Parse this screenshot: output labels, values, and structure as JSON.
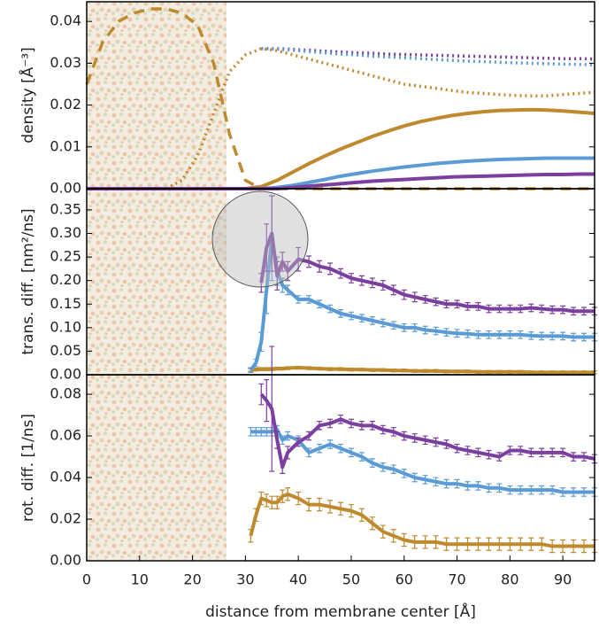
{
  "chart_data": [
    {
      "type": "line",
      "ylabel": "density [Å⁻³]",
      "xlim": [
        0,
        96
      ],
      "ylim": [
        0,
        0.0447
      ],
      "yticks": [
        {
          "value": 0,
          "label": "0.00"
        },
        0.01,
        0.02,
        0.03,
        0.04
      ],
      "x": [
        0,
        3,
        6,
        9,
        12,
        15,
        18,
        21,
        24,
        27,
        30,
        33,
        36,
        39,
        42,
        45,
        48,
        51,
        54,
        57,
        60,
        63,
        66,
        69,
        72,
        75,
        78,
        81,
        84,
        87,
        90,
        93,
        96
      ],
      "series": [
        {
          "color": "#bf8a2e",
          "dash": "dashed",
          "values": [
            0.025,
            0.035,
            0.04,
            0.042,
            0.043,
            0.043,
            0.042,
            0.039,
            0.03,
            0.013,
            0.002,
            0,
            0,
            0,
            0,
            0,
            0,
            0,
            0,
            0,
            0,
            0,
            0,
            0,
            0,
            0,
            0,
            0,
            0,
            0,
            0,
            0,
            0
          ]
        },
        {
          "color": "#bf8a2e",
          "dash": "dotted",
          "values": [
            null,
            null,
            null,
            null,
            null,
            0,
            0.002,
            0.008,
            0.018,
            0.028,
            0.032,
            0.0335,
            0.033,
            0.032,
            0.031,
            0.03,
            0.029,
            0.028,
            0.027,
            0.026,
            0.025,
            0.0245,
            0.024,
            0.0235,
            0.023,
            0.0228,
            0.0225,
            0.0223,
            0.0222,
            0.0222,
            0.0225,
            0.0228,
            0.023
          ]
        },
        {
          "color": "#7b3fa0",
          "dash": "dotted",
          "values": [
            null,
            null,
            null,
            null,
            null,
            null,
            null,
            null,
            null,
            null,
            null,
            0.0335,
            0.0335,
            0.0333,
            0.0331,
            0.0329,
            0.0327,
            0.0325,
            0.0324,
            0.0322,
            0.0321,
            0.032,
            0.0319,
            0.0318,
            0.0317,
            0.0316,
            0.0315,
            0.0314,
            0.0313,
            0.0312,
            0.0311,
            0.0311,
            0.031
          ]
        },
        {
          "color": "#5b9bd5",
          "dash": "dotted",
          "values": [
            null,
            null,
            null,
            null,
            null,
            null,
            null,
            null,
            null,
            null,
            null,
            0.0335,
            0.0334,
            0.0331,
            0.0328,
            0.0325,
            0.0322,
            0.032,
            0.0317,
            0.0315,
            0.0313,
            0.0311,
            0.0309,
            0.0307,
            0.0305,
            0.0304,
            0.0302,
            0.0301,
            0.03,
            0.0299,
            0.0298,
            0.0297,
            0.0296
          ]
        },
        {
          "color": "#bf8a2e",
          "dash": "solid",
          "values": [
            0,
            0,
            0,
            0,
            0,
            0,
            0,
            0,
            0,
            0,
            0,
            0.0005,
            0.002,
            0.004,
            0.006,
            0.0078,
            0.0095,
            0.011,
            0.0125,
            0.0138,
            0.015,
            0.016,
            0.0168,
            0.0175,
            0.018,
            0.0184,
            0.0187,
            0.0188,
            0.0189,
            0.0188,
            0.0186,
            0.0183,
            0.018
          ]
        },
        {
          "color": "#5b9bd5",
          "dash": "solid",
          "values": [
            0,
            0,
            0,
            0,
            0,
            0,
            0,
            0,
            0,
            0,
            0,
            0,
            0.0003,
            0.0008,
            0.0015,
            0.0022,
            0.003,
            0.0036,
            0.0042,
            0.0047,
            0.0052,
            0.0056,
            0.006,
            0.0063,
            0.0066,
            0.0068,
            0.007,
            0.0071,
            0.0072,
            0.0073,
            0.0073,
            0.0073,
            0.0073
          ]
        },
        {
          "color": "#7b3fa0",
          "dash": "solid",
          "values": [
            0,
            0,
            0,
            0,
            0,
            0,
            0,
            0,
            0,
            0,
            0,
            0,
            0,
            0.0003,
            0.0006,
            0.0009,
            0.0012,
            0.0015,
            0.0018,
            0.002,
            0.0022,
            0.0024,
            0.0026,
            0.0028,
            0.0029,
            0.003,
            0.0031,
            0.0032,
            0.0033,
            0.0034,
            0.0034,
            0.0035,
            0.0035
          ]
        }
      ]
    },
    {
      "type": "line",
      "ylabel": "trans. diff. [nm²/ns]",
      "xlim": [
        0,
        96
      ],
      "ylim": [
        0,
        0.395
      ],
      "yticks": [
        {
          "value": 0,
          "label": "0.00"
        },
        0.05,
        {
          "value": 0.1,
          "label": "0.10"
        },
        0.15,
        {
          "value": 0.2,
          "label": "0.20"
        },
        0.25,
        {
          "value": 0.3,
          "label": "0.30"
        },
        0.35
      ],
      "x": [
        31,
        32,
        33,
        34,
        35,
        36,
        37,
        38,
        40,
        42,
        44,
        46,
        48,
        50,
        52,
        54,
        56,
        58,
        60,
        62,
        64,
        66,
        68,
        70,
        72,
        74,
        76,
        78,
        80,
        82,
        84,
        86,
        88,
        90,
        92,
        94,
        96
      ],
      "series": [
        {
          "color": "#bf8a2e",
          "dash": "solid",
          "values": [
            0.01,
            0.011,
            0.012,
            0.012,
            0.012,
            0.013,
            0.013,
            0.014,
            0.015,
            0.014,
            0.013,
            0.012,
            0.012,
            0.011,
            0.011,
            0.01,
            0.01,
            0.009,
            0.009,
            0.008,
            0.008,
            0.008,
            0.007,
            0.007,
            0.007,
            0.006,
            0.006,
            0.006,
            0.006,
            0.006,
            0.005,
            0.005,
            0.005,
            0.005,
            0.005,
            0.005,
            0.005
          ],
          "errors": [
            0.003,
            0.003,
            0.003,
            0.003,
            0.003,
            0.003,
            0.003,
            0.003,
            0.003,
            0.003,
            0.003,
            0.003,
            0.003,
            0.003,
            0.003,
            0.003,
            0.003,
            0.003,
            0.003,
            0.003,
            0.003,
            0.003,
            0.003,
            0.003,
            0.003,
            0.003,
            0.003,
            0.003,
            0.003,
            0.003,
            0.003,
            0.003,
            0.003,
            0.003,
            0.003,
            0.003,
            0.003
          ]
        },
        {
          "color": "#5b9bd5",
          "dash": "solid",
          "values": [
            0.01,
            0.025,
            0.07,
            0.18,
            0.29,
            0.22,
            0.19,
            0.18,
            0.16,
            0.16,
            0.15,
            0.14,
            0.13,
            0.125,
            0.12,
            0.115,
            0.11,
            0.105,
            0.1,
            0.1,
            0.095,
            0.093,
            0.09,
            0.088,
            0.087,
            0.085,
            0.085,
            0.085,
            0.085,
            0.085,
            0.083,
            0.082,
            0.082,
            0.082,
            0.08,
            0.08,
            0.08
          ],
          "errors": [
            0.005,
            0.008,
            0.02,
            0.05,
            0.09,
            0.03,
            0.015,
            0.01,
            0.008,
            0.008,
            0.008,
            0.008,
            0.008,
            0.008,
            0.008,
            0.008,
            0.008,
            0.008,
            0.008,
            0.008,
            0.008,
            0.008,
            0.008,
            0.008,
            0.008,
            0.008,
            0.008,
            0.008,
            0.008,
            0.008,
            0.008,
            0.008,
            0.008,
            0.008,
            0.008,
            0.008,
            0.008
          ]
        },
        {
          "color": "#7b3fa0",
          "dash": "solid",
          "values": [
            null,
            null,
            0.195,
            0.27,
            0.3,
            0.21,
            0.24,
            0.22,
            0.245,
            0.24,
            0.23,
            0.225,
            0.215,
            0.205,
            0.2,
            0.195,
            0.19,
            0.18,
            0.17,
            0.165,
            0.16,
            0.155,
            0.15,
            0.15,
            0.145,
            0.145,
            0.14,
            0.14,
            0.14,
            0.14,
            0.142,
            0.14,
            0.138,
            0.138,
            0.135,
            0.135,
            0.135
          ],
          "errors": [
            null,
            null,
            0.02,
            0.05,
            0.08,
            0.03,
            0.02,
            0.02,
            0.025,
            0.012,
            0.012,
            0.012,
            0.01,
            0.01,
            0.01,
            0.01,
            0.01,
            0.01,
            0.01,
            0.01,
            0.008,
            0.008,
            0.008,
            0.008,
            0.008,
            0.008,
            0.008,
            0.008,
            0.008,
            0.008,
            0.008,
            0.008,
            0.008,
            0.008,
            0.008,
            0.008,
            0.008
          ]
        }
      ]
    },
    {
      "type": "line",
      "ylabel": "rot. diff. [1/ns]",
      "xlabel": "distance from membrane center [Å]",
      "xlim": [
        0,
        96
      ],
      "ylim": [
        0,
        0.0894
      ],
      "xticks": [
        0,
        10,
        20,
        30,
        40,
        50,
        60,
        70,
        80,
        90
      ],
      "yticks": [
        {
          "value": 0,
          "label": "0.00"
        },
        0.02,
        0.04,
        0.06,
        0.08
      ],
      "x": [
        31,
        32,
        33,
        34,
        35,
        36,
        37,
        38,
        40,
        42,
        44,
        46,
        48,
        50,
        52,
        54,
        56,
        58,
        60,
        62,
        64,
        66,
        68,
        70,
        72,
        74,
        76,
        78,
        80,
        82,
        84,
        86,
        88,
        90,
        92,
        94,
        96
      ],
      "series": [
        {
          "color": "#bf8a2e",
          "dash": "solid",
          "values": [
            0.012,
            0.022,
            0.03,
            0.029,
            0.028,
            0.028,
            0.031,
            0.032,
            0.03,
            0.027,
            0.027,
            0.026,
            0.025,
            0.024,
            0.022,
            0.018,
            0.014,
            0.012,
            0.01,
            0.009,
            0.009,
            0.009,
            0.008,
            0.008,
            0.008,
            0.008,
            0.008,
            0.008,
            0.008,
            0.008,
            0.008,
            0.008,
            0.007,
            0.007,
            0.007,
            0.007,
            0.007
          ],
          "errors": [
            0.003,
            0.003,
            0.003,
            0.003,
            0.003,
            0.003,
            0.003,
            0.003,
            0.003,
            0.003,
            0.003,
            0.003,
            0.003,
            0.003,
            0.003,
            0.003,
            0.003,
            0.003,
            0.003,
            0.003,
            0.003,
            0.003,
            0.003,
            0.003,
            0.003,
            0.003,
            0.003,
            0.003,
            0.003,
            0.003,
            0.003,
            0.003,
            0.003,
            0.003,
            0.003,
            0.003,
            0.003
          ]
        },
        {
          "color": "#5b9bd5",
          "dash": "solid",
          "values": [
            0.062,
            0.062,
            0.062,
            0.062,
            0.062,
            0.063,
            0.058,
            0.06,
            0.058,
            0.052,
            0.054,
            0.056,
            0.054,
            0.052,
            0.05,
            0.047,
            0.045,
            0.044,
            0.042,
            0.04,
            0.039,
            0.038,
            0.037,
            0.037,
            0.036,
            0.036,
            0.035,
            0.035,
            0.034,
            0.034,
            0.034,
            0.034,
            0.034,
            0.033,
            0.033,
            0.033,
            0.033
          ],
          "errors": [
            0.002,
            0.002,
            0.002,
            0.002,
            0.002,
            0.002,
            0.002,
            0.002,
            0.002,
            0.002,
            0.002,
            0.002,
            0.002,
            0.002,
            0.002,
            0.002,
            0.002,
            0.002,
            0.002,
            0.002,
            0.002,
            0.002,
            0.002,
            0.002,
            0.002,
            0.002,
            0.002,
            0.002,
            0.002,
            0.002,
            0.002,
            0.002,
            0.002,
            0.002,
            0.002,
            0.002,
            0.002
          ]
        },
        {
          "color": "#7b3fa0",
          "dash": "solid",
          "values": [
            null,
            null,
            0.08,
            0.077,
            0.073,
            0.058,
            0.045,
            0.052,
            0.057,
            0.06,
            0.065,
            0.066,
            0.068,
            0.066,
            0.065,
            0.065,
            0.063,
            0.062,
            0.06,
            0.059,
            0.058,
            0.057,
            0.056,
            0.054,
            0.053,
            0.052,
            0.051,
            0.05,
            0.053,
            0.053,
            0.052,
            0.052,
            0.052,
            0.052,
            0.05,
            0.05,
            0.049
          ],
          "errors": [
            null,
            null,
            0.005,
            0.01,
            0.03,
            0.004,
            0.003,
            0.003,
            0.002,
            0.002,
            0.002,
            0.002,
            0.002,
            0.002,
            0.002,
            0.002,
            0.002,
            0.002,
            0.002,
            0.002,
            0.002,
            0.002,
            0.002,
            0.002,
            0.002,
            0.002,
            0.002,
            0.002,
            0.002,
            0.002,
            0.002,
            0.002,
            0.002,
            0.002,
            0.002,
            0.002,
            0.002
          ]
        }
      ]
    }
  ]
}
